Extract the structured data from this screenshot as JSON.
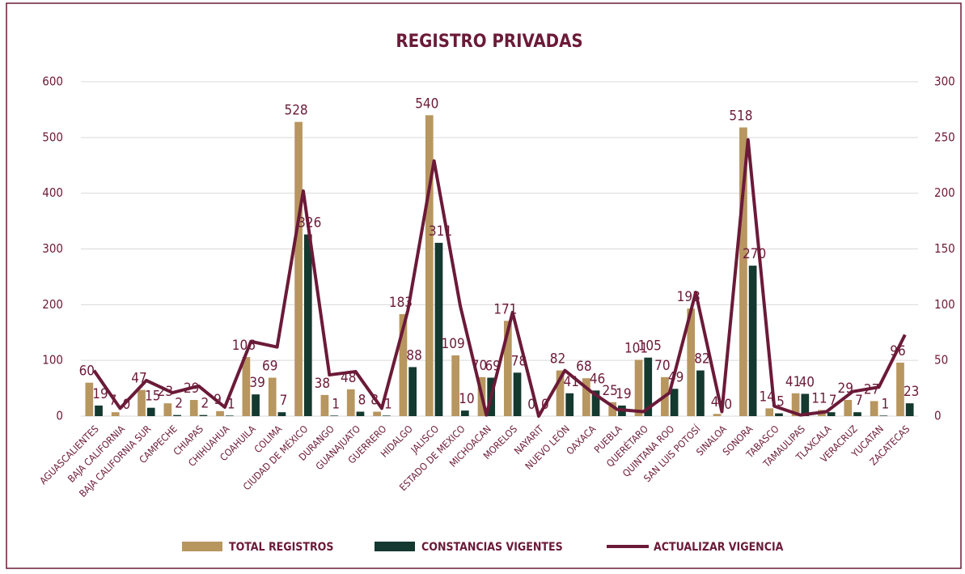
{
  "chart_data": {
    "type": "bar",
    "title": "REGISTRO PRIVADAS",
    "categories": [
      "AGUASCALIENTES",
      "BAJA CALIFORNIA",
      "BAJA CALIFORNIA SUR",
      "CAMPECHE",
      "CHIAPAS",
      "CHIHUAHUA",
      "COAHUILA",
      "COLIMA",
      "CIUDAD DE MÉXICO",
      "DURANGO",
      "GUANAJUATO",
      "GUERRERO",
      "HIDALGO",
      "JALISCO",
      "ESTADO DE MEXICO",
      "MICHOACAN",
      "MORELOS",
      "NAYARIT",
      "NUEVO LEÓN",
      "OAXACA",
      "PUEBLA",
      "QUERÉTARO",
      "QUINTANA ROO",
      "SAN LUIS POTOSÍ",
      "SINALOA",
      "SONORA",
      "TABASCO",
      "TAMAULIPAS",
      "TLAXCALA",
      "VERACRUZ",
      "YUCATAN",
      "ZACATECAS"
    ],
    "series": [
      {
        "name": "TOTAL REGISTROS",
        "color": "#b8965f",
        "values": [
          60,
          7,
          47,
          23,
          29,
          9,
          106,
          69,
          528,
          38,
          48,
          8,
          183,
          540,
          109,
          70,
          171,
          0,
          82,
          68,
          25,
          101,
          70,
          193,
          4,
          518,
          14,
          41,
          11,
          29,
          27,
          96
        ]
      },
      {
        "name": "CONSTANCIAS VIGENTES",
        "color": "#14392f",
        "values": [
          19,
          0,
          15,
          2,
          2,
          1,
          39,
          7,
          326,
          1,
          8,
          1,
          88,
          311,
          10,
          69,
          78,
          0,
          41,
          46,
          19,
          105,
          49,
          82,
          0,
          270,
          5,
          40,
          7,
          7,
          1,
          23
        ]
      },
      {
        "name": "ACTUALIZAR VIGENCIA",
        "color": "#6b1a38",
        "axis": "y2",
        "type": "line",
        "values": [
          41,
          7,
          32,
          21,
          27,
          8,
          67,
          62,
          202,
          37,
          40,
          7,
          95,
          229,
          99,
          1,
          93,
          0,
          41,
          22,
          6,
          4,
          21,
          111,
          4,
          248,
          9,
          1,
          4,
          22,
          26,
          73
        ]
      }
    ],
    "ylim": [
      0,
      600
    ],
    "yticks": [
      0,
      100,
      200,
      300,
      400,
      500,
      600
    ],
    "y2lim": [
      0,
      300
    ],
    "y2ticks": [
      0,
      50,
      100,
      150,
      200,
      250,
      300
    ],
    "grid": true,
    "legend": "bottom"
  }
}
